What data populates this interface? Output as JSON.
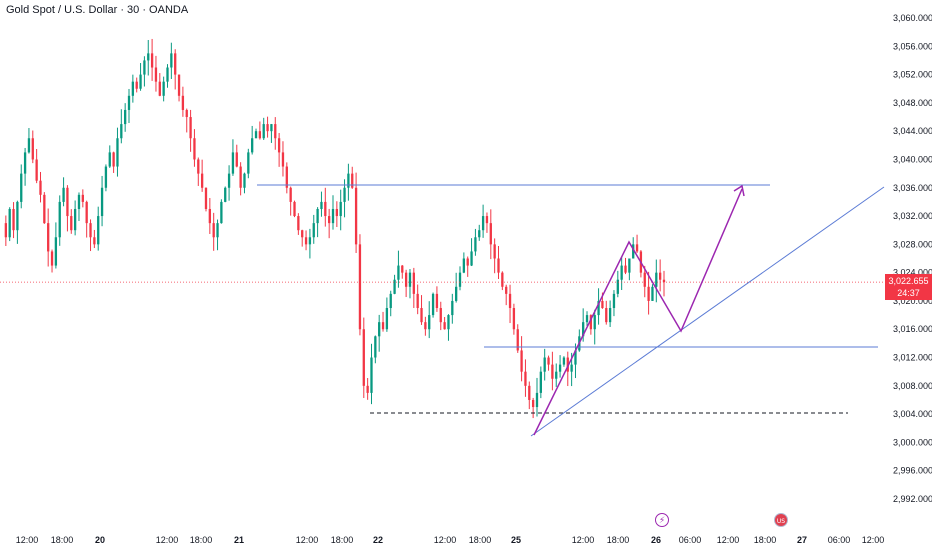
{
  "symbol": {
    "title": "Gold Spot / U.S. Dollar · 30 · OANDA"
  },
  "price_axis": {
    "labels": [
      "3,060.000",
      "3,056.000",
      "3,052.000",
      "3,048.000",
      "3,044.000",
      "3,040.000",
      "3,036.000",
      "3,032.000",
      "3,028.000",
      "3,024.000",
      "3,020.000",
      "3,016.000",
      "3,012.000",
      "3,008.000",
      "3,004.000",
      "3,000.000",
      "2,996.000",
      "2,992.000"
    ],
    "current_price": "3,022.655",
    "countdown": "24:37"
  },
  "time_axis": {
    "ticks": [
      {
        "label": "12:00",
        "bold": false
      },
      {
        "label": "18:00",
        "bold": false
      },
      {
        "label": "20",
        "bold": true
      },
      {
        "label": "12:00",
        "bold": false
      },
      {
        "label": "18:00",
        "bold": false
      },
      {
        "label": "21",
        "bold": true
      },
      {
        "label": "12:00",
        "bold": false
      },
      {
        "label": "18:00",
        "bold": false
      },
      {
        "label": "22",
        "bold": true
      },
      {
        "label": "12:00",
        "bold": false
      },
      {
        "label": "18:00",
        "bold": false
      },
      {
        "label": "25",
        "bold": true
      },
      {
        "label": "12:00",
        "bold": false
      },
      {
        "label": "18:00",
        "bold": false
      },
      {
        "label": "26",
        "bold": true
      },
      {
        "label": "06:00",
        "bold": false
      },
      {
        "label": "12:00",
        "bold": false
      },
      {
        "label": "18:00",
        "bold": false
      },
      {
        "label": "27",
        "bold": true
      },
      {
        "label": "06:00",
        "bold": false
      },
      {
        "label": "12:00",
        "bold": false
      }
    ]
  },
  "events": {
    "bolt_icon": "⚡",
    "us_flag_icon": "US"
  },
  "colors": {
    "up": "#089981",
    "down": "#f23645",
    "drawing_blue": "#5b7bd5",
    "drawing_purple": "#9c27b0",
    "dashed_level": "#131722",
    "grid": "#f0f3fa"
  },
  "chart_data": {
    "type": "candlestick",
    "timeframe": "30",
    "ylim": [
      2992,
      3060
    ],
    "last_price": 3022.655,
    "series": [
      {
        "name": "path",
        "values": [
          3031,
          3029,
          3033,
          3030,
          3034,
          3038,
          3041,
          3043,
          3040,
          3037,
          3035,
          3031,
          3027,
          3025,
          3029,
          3034,
          3036,
          3032,
          3030,
          3033,
          3035,
          3034,
          3031,
          3029,
          3028,
          3032,
          3036,
          3039,
          3041,
          3039,
          3043,
          3045,
          3047,
          3049,
          3051,
          3050,
          3052,
          3054,
          3055,
          3053,
          3051,
          3049,
          3051,
          3053,
          3055,
          3052,
          3049,
          3047,
          3046,
          3043,
          3040,
          3038,
          3036,
          3033,
          3031,
          3029,
          3031,
          3034,
          3036,
          3038,
          3041,
          3039,
          3036,
          3038,
          3041,
          3043,
          3044,
          3043,
          3045,
          3044,
          3045,
          3043,
          3041,
          3039,
          3036,
          3034,
          3032,
          3030,
          3029,
          3028,
          3029,
          3031,
          3033,
          3034,
          3032,
          3031,
          3033,
          3032,
          3034,
          3036,
          3038,
          3036,
          3028,
          3016,
          3008,
          3007,
          3012,
          3015,
          3017,
          3016,
          3019,
          3021,
          3023,
          3025,
          3024,
          3022,
          3024,
          3021,
          3019,
          3017,
          3016,
          3018,
          3021,
          3019,
          3017,
          3016,
          3018,
          3020,
          3022,
          3024,
          3026,
          3025,
          3027,
          3029,
          3030,
          3032,
          3031,
          3028,
          3026,
          3024,
          3022,
          3021,
          3019,
          3016,
          3013,
          3010,
          3008,
          3006,
          3005,
          3007,
          3010,
          3012,
          3011,
          3009,
          3010,
          3011,
          3012,
          3010,
          3011,
          3013,
          3015,
          3017,
          3018,
          3016,
          3018,
          3020,
          3019,
          3017,
          3019,
          3021,
          3023,
          3025,
          3024,
          3026,
          3028,
          3027,
          3024,
          3022,
          3020,
          3022,
          3024,
          3023,
          3022.655
        ]
      }
    ]
  }
}
